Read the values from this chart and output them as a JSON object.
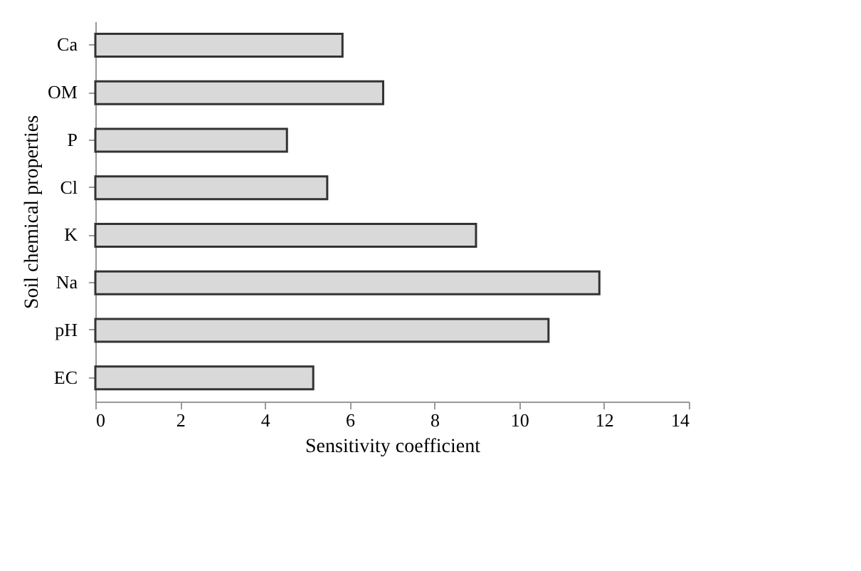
{
  "chart_data": {
    "type": "bar",
    "orientation": "horizontal",
    "xlabel": "Sensitivity coefficient",
    "ylabel": "Soil chemical properties",
    "categories": [
      "Ca",
      "OM",
      "P",
      "Cl",
      "K",
      "Na",
      "pH",
      "EC"
    ],
    "values": [
      5.83,
      6.79,
      4.52,
      5.47,
      8.98,
      11.89,
      10.69,
      5.14
    ],
    "color": "#d9d9d9",
    "xlim": [
      0,
      14
    ],
    "xticks": [
      0,
      2,
      4,
      6,
      8,
      10,
      12,
      14
    ],
    "grid": false
  }
}
